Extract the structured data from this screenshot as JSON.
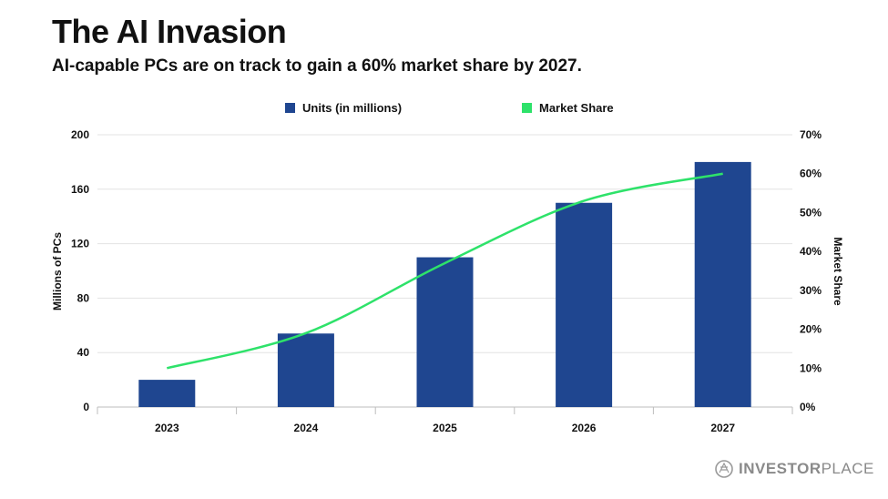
{
  "header": {
    "title": "The AI Invasion",
    "subtitle": "AI-capable PCs are on track to gain a 60% market share by 2027."
  },
  "brand": {
    "name_bold": "INVESTOR",
    "name_light": "PLACE",
    "icon": "investorplace-logo-icon"
  },
  "colors": {
    "bars": "#1f4690",
    "line": "#2ee26a",
    "grid": "#e3e3e3",
    "axis": "#bdbdbd"
  },
  "chart_data": {
    "type": "bar",
    "categories": [
      "2023",
      "2024",
      "2025",
      "2026",
      "2027"
    ],
    "series": [
      {
        "name": "Units (in millions)",
        "type": "bar",
        "axis": "left",
        "values": [
          20,
          54,
          110,
          150,
          180
        ]
      },
      {
        "name": "Market Share",
        "type": "line",
        "axis": "right",
        "values": [
          10,
          19,
          37,
          53,
          60
        ]
      }
    ],
    "ylabel": "Millions of PCs",
    "ylabel_right": "Market Share",
    "ylim": [
      0,
      200
    ],
    "ylim_right": [
      0,
      70
    ],
    "yticks": [
      "0",
      "40",
      "80",
      "120",
      "160",
      "200"
    ],
    "yticks_right": [
      "0%",
      "10%",
      "20%",
      "30%",
      "40%",
      "50%",
      "60%",
      "70%"
    ],
    "grid": true,
    "legend_position": "top-center"
  }
}
